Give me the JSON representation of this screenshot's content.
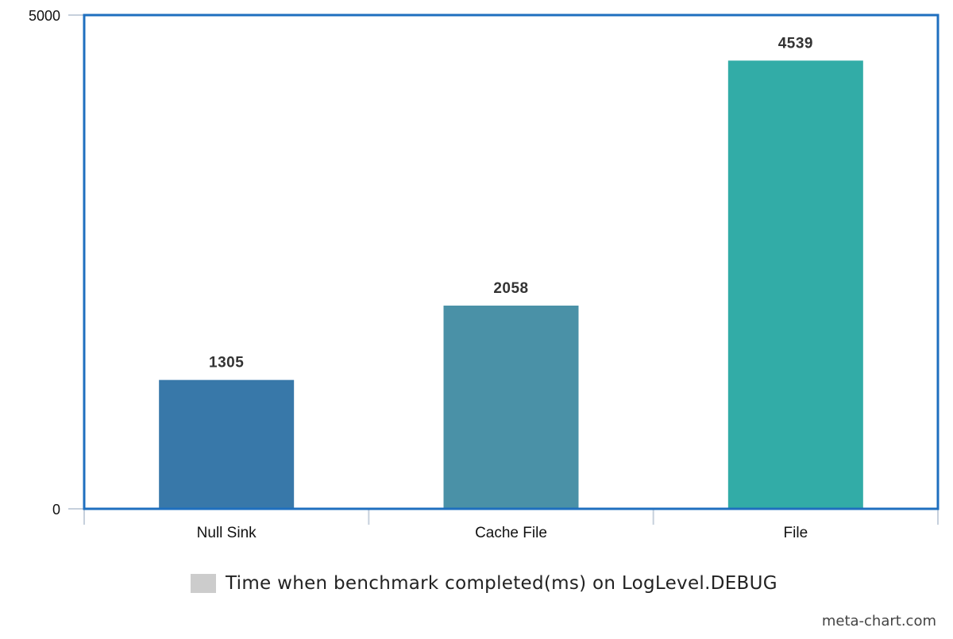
{
  "chart_data": {
    "type": "bar",
    "categories": [
      "Null Sink",
      "Cache File",
      "File"
    ],
    "values": [
      1305,
      2058,
      4539
    ],
    "data_labels": [
      "1305",
      "2058",
      "4539"
    ],
    "ylim": [
      0,
      5000
    ],
    "yticks": [
      "0",
      "5000"
    ],
    "colors": [
      "#3878a9",
      "#4a91a7",
      "#32aca7"
    ],
    "frame_color": "#1f6fbf",
    "title": "",
    "xlabel": "",
    "ylabel": "",
    "grid": false,
    "legend": {
      "label": "Time when benchmark completed(ms) on LogLevel.DEBUG",
      "swatch_color": "#cccccc",
      "position": "bottom-center"
    }
  },
  "watermark": "meta-chart.com"
}
